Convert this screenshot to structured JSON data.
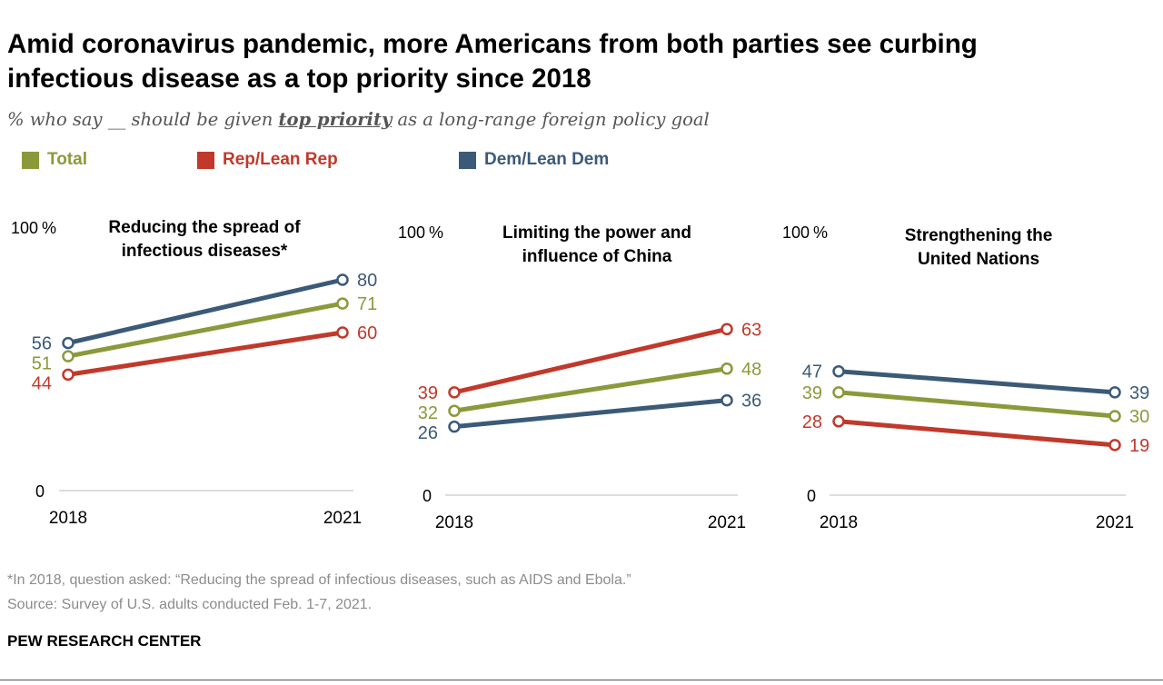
{
  "title_line1": "Amid coronavirus pandemic, more Americans from both parties see curbing",
  "title_line2": "infectious disease as a top priority since 2018",
  "subtitle_pre": "% who say __ should be given ",
  "subtitle_em": "top priority",
  "subtitle_post": " as a long-range foreign policy goal",
  "legend": [
    {
      "label": "Total",
      "color": "#8a9a3b"
    },
    {
      "label": "Rep/Lean Rep",
      "color": "#c0392b"
    },
    {
      "label": "Dem/Lean Dem",
      "color": "#3b5a78"
    }
  ],
  "footnote": "*In 2018, question asked: “Reducing the spread of infectious diseases, such as AIDS and Ebola.”",
  "source": "Source: Survey of U.S. adults conducted Feb. 1-7, 2021.",
  "org": "PEW RESEARCH CENTER",
  "chart_data": [
    {
      "type": "line",
      "title": [
        "Reducing the spread of",
        "infectious diseases*"
      ],
      "x": [
        "2018",
        "2021"
      ],
      "ylim": [
        0,
        100
      ],
      "ytick_top": "100",
      "ytick_top_unit": "%",
      "ytick_bottom": "0",
      "series": [
        {
          "name": "Dem/Lean Dem",
          "color": "#3b5a78",
          "values": [
            56,
            80
          ]
        },
        {
          "name": "Total",
          "color": "#8a9a3b",
          "values": [
            51,
            71
          ]
        },
        {
          "name": "Rep/Lean Rep",
          "color": "#c0392b",
          "values": [
            44,
            60
          ]
        }
      ]
    },
    {
      "type": "line",
      "title": [
        "Limiting the power and",
        "influence of China"
      ],
      "x": [
        "2018",
        "2021"
      ],
      "ylim": [
        0,
        100
      ],
      "ytick_top": "100",
      "ytick_top_unit": "%",
      "ytick_bottom": "0",
      "series": [
        {
          "name": "Rep/Lean Rep",
          "color": "#c0392b",
          "values": [
            39,
            63
          ]
        },
        {
          "name": "Total",
          "color": "#8a9a3b",
          "values": [
            32,
            48
          ]
        },
        {
          "name": "Dem/Lean Dem",
          "color": "#3b5a78",
          "values": [
            26,
            36
          ]
        }
      ]
    },
    {
      "type": "line",
      "title": [
        "Strengthening the",
        "United Nations"
      ],
      "x": [
        "2018",
        "2021"
      ],
      "ylim": [
        0,
        100
      ],
      "ytick_top": "100",
      "ytick_top_unit": "%",
      "ytick_bottom": "0",
      "series": [
        {
          "name": "Dem/Lean Dem",
          "color": "#3b5a78",
          "values": [
            47,
            39
          ]
        },
        {
          "name": "Total",
          "color": "#8a9a3b",
          "values": [
            39,
            30
          ]
        },
        {
          "name": "Rep/Lean Rep",
          "color": "#c0392b",
          "values": [
            28,
            19
          ]
        }
      ]
    }
  ]
}
